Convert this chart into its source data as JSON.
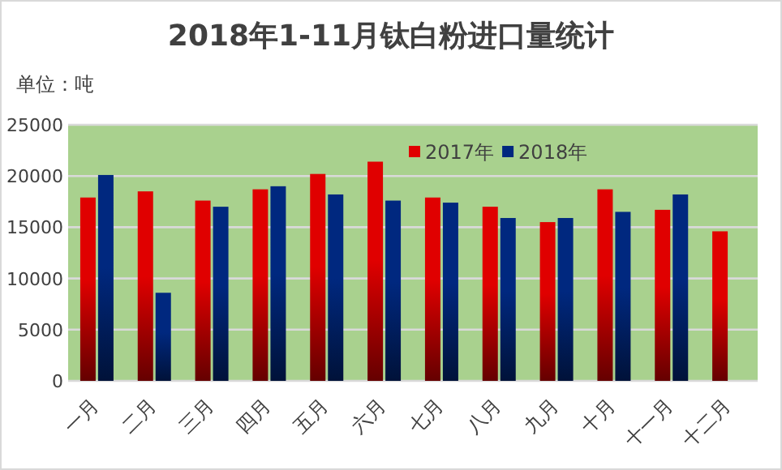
{
  "chart_data": {
    "type": "bar",
    "title": "2018年1-11月钛白粉进口量统计",
    "ylabel": "单位：吨",
    "categories": [
      "一月",
      "二月",
      "三月",
      "四月",
      "五月",
      "六月",
      "七月",
      "八月",
      "九月",
      "十月",
      "十一月",
      "十二月"
    ],
    "series": [
      {
        "name": "2017年",
        "color": "#e00000",
        "values": [
          17900,
          18500,
          17600,
          18700,
          20200,
          21400,
          17900,
          17000,
          15500,
          18700,
          16700,
          14600
        ]
      },
      {
        "name": "2018年",
        "color": "#00287f",
        "values": [
          20100,
          8600,
          17000,
          19000,
          18200,
          17600,
          17400,
          15900,
          15900,
          16500,
          18200,
          null
        ]
      }
    ],
    "ylim": [
      0,
      25000
    ],
    "yticks": [
      0,
      5000,
      10000,
      15000,
      20000,
      25000
    ],
    "grid": "y",
    "legend": "top"
  }
}
